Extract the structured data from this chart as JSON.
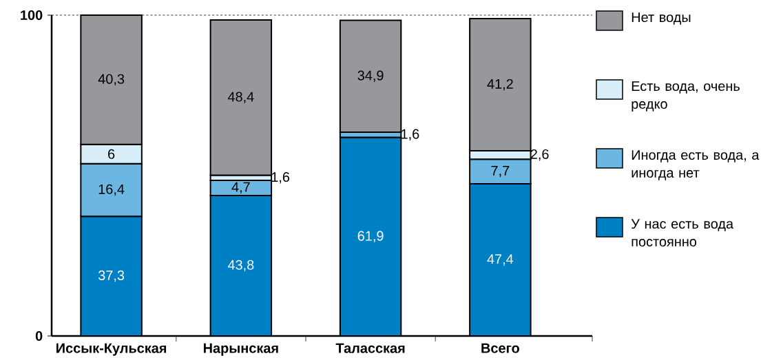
{
  "chart_data": {
    "type": "bar",
    "stacked": true,
    "categories": [
      "Иссык-Кульская",
      "Нарынская",
      "Таласская",
      "Всего"
    ],
    "ylim": [
      0,
      100
    ],
    "yticks": [
      0,
      100
    ],
    "legend": "right",
    "ref_lines": [
      {
        "axis": "y",
        "value": 100,
        "line_style": "dashed"
      }
    ],
    "series": [
      {
        "name": "У нас есть вода постоянно",
        "color": "#0080c4",
        "values": [
          37.3,
          43.8,
          61.9,
          47.4
        ],
        "value_labels": [
          "37,3",
          "43,8",
          "61,9",
          "47,4"
        ]
      },
      {
        "name": "Иногда есть вода, а иногда нет",
        "color": "#6cb6e2",
        "values": [
          16.4,
          4.7,
          1.6,
          7.7
        ],
        "value_labels": [
          "16,4",
          "4,7",
          "1,6",
          "7,7"
        ]
      },
      {
        "name": "Есть вода, очень редко",
        "color": "#d8eef9",
        "values": [
          6,
          1.6,
          null,
          2.6
        ],
        "value_labels": [
          "6",
          "1,6",
          null,
          "2,6"
        ]
      },
      {
        "name": "Нет воды",
        "color": "#97989b",
        "values": [
          40.3,
          48.4,
          34.9,
          41.2
        ],
        "value_labels": [
          "40,3",
          "48,4",
          "34,9",
          "41,2"
        ]
      }
    ]
  }
}
